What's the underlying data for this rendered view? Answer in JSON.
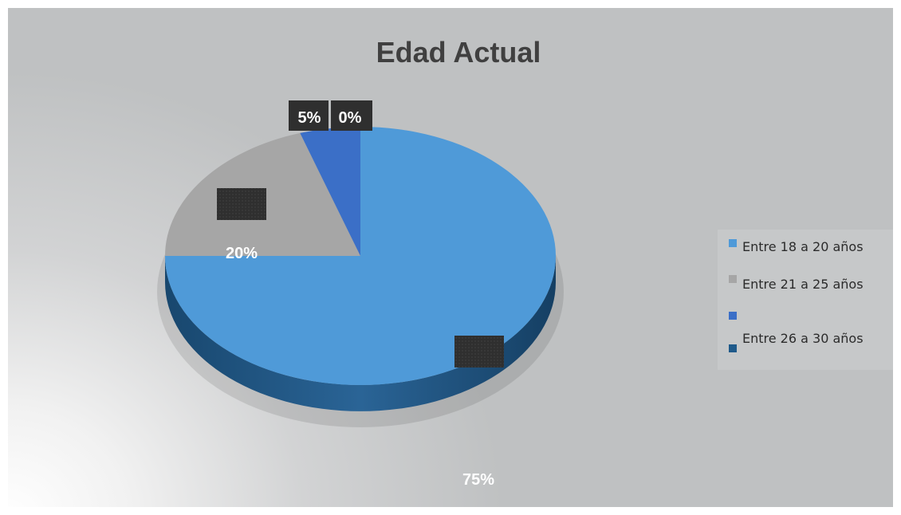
{
  "chart_data": {
    "type": "pie",
    "title": "Edad Actual",
    "categories": [
      "Entre 18 a 20 años",
      "Entre 21 a 25 años",
      "",
      "Entre 26 a 30 años"
    ],
    "values": [
      75,
      20,
      5,
      0
    ],
    "value_labels": [
      "75%",
      "20%",
      "5%",
      "0%"
    ],
    "legend_position": "right",
    "colors": [
      "#4f9ad8",
      "#a6a6a6",
      "#3b6fc7",
      "#1f5a8a"
    ],
    "three_d": true
  }
}
